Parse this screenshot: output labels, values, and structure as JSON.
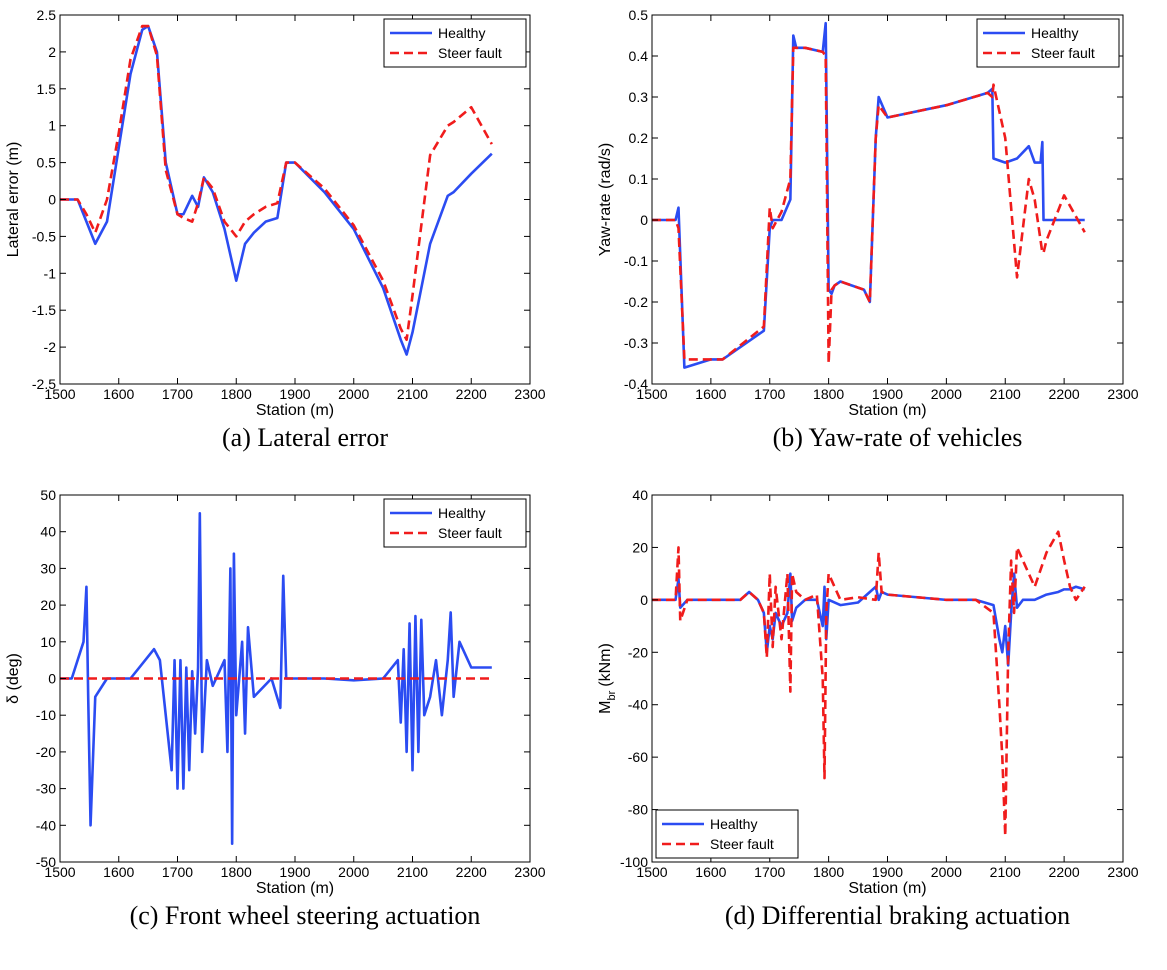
{
  "chart_data": [
    {
      "type": "line",
      "caption": "(a) Lateral error",
      "xlabel": "Station (m)",
      "ylabel": "Lateral error (m)",
      "legend": "northeast",
      "xlim": [
        1500,
        2300
      ],
      "xticks": [
        1500,
        1600,
        1700,
        1800,
        1900,
        2000,
        2100,
        2200,
        2300
      ],
      "ylim": [
        -2.5,
        2.5
      ],
      "yticks": [
        -2.5,
        -2,
        -1.5,
        -1,
        -0.5,
        0,
        0.5,
        1,
        1.5,
        2,
        2.5
      ],
      "x": [
        1500,
        1530,
        1545,
        1560,
        1580,
        1600,
        1620,
        1640,
        1650,
        1665,
        1680,
        1700,
        1710,
        1725,
        1735,
        1745,
        1760,
        1780,
        1800,
        1815,
        1830,
        1850,
        1870,
        1885,
        1900,
        1950,
        2000,
        2050,
        2080,
        2090,
        2100,
        2130,
        2160,
        2170,
        2200,
        2235
      ],
      "series": [
        {
          "name": "Healthy",
          "color": "#2b4cf2",
          "linestyle": "solid",
          "values": [
            0,
            0,
            -0.3,
            -0.6,
            -0.3,
            0.7,
            1.7,
            2.3,
            2.35,
            2.0,
            0.5,
            -0.2,
            -0.2,
            0.05,
            -0.1,
            0.3,
            0.1,
            -0.4,
            -1.1,
            -0.6,
            -0.45,
            -0.3,
            -0.25,
            0.5,
            0.5,
            0.1,
            -0.4,
            -1.2,
            -1.9,
            -2.1,
            -1.8,
            -0.6,
            0.05,
            0.1,
            0.35,
            0.62
          ]
        },
        {
          "name": "Steer fault",
          "color": "#f01c1c",
          "linestyle": "dashed",
          "values": [
            0,
            0,
            -0.2,
            -0.45,
            0,
            0.9,
            1.9,
            2.35,
            2.35,
            1.95,
            0.4,
            -0.2,
            -0.25,
            -0.3,
            -0.05,
            0.3,
            0.15,
            -0.3,
            -0.5,
            -0.3,
            -0.2,
            -0.1,
            -0.05,
            0.5,
            0.5,
            0.15,
            -0.35,
            -1.1,
            -1.75,
            -1.9,
            -1.3,
            0.6,
            1.0,
            1.05,
            1.25,
            0.75
          ]
        }
      ]
    },
    {
      "type": "line",
      "caption": "(b) Yaw-rate of vehicles",
      "xlabel": "Station (m)",
      "ylabel": "Yaw-rate (rad/s)",
      "legend": "northeast",
      "xlim": [
        1500,
        2300
      ],
      "xticks": [
        1500,
        1600,
        1700,
        1800,
        1900,
        2000,
        2100,
        2200,
        2300
      ],
      "ylim": [
        -0.4,
        0.5
      ],
      "yticks": [
        -0.4,
        -0.3,
        -0.2,
        -0.1,
        0,
        0.1,
        0.2,
        0.3,
        0.4,
        0.5
      ],
      "x": [
        1500,
        1540,
        1545,
        1555,
        1600,
        1620,
        1690,
        1700,
        1705,
        1720,
        1735,
        1740,
        1745,
        1760,
        1790,
        1795,
        1800,
        1805,
        1810,
        1820,
        1840,
        1860,
        1870,
        1880,
        1885,
        1900,
        2000,
        2070,
        2078,
        2080,
        2100,
        2120,
        2140,
        2150,
        2160,
        2163,
        2165,
        2170,
        2200,
        2235
      ],
      "series": [
        {
          "name": "Healthy",
          "color": "#2b4cf2",
          "linestyle": "solid",
          "values": [
            0,
            0,
            0.03,
            -0.36,
            -0.34,
            -0.34,
            -0.27,
            -0.02,
            0,
            0,
            0.05,
            0.45,
            0.42,
            0.42,
            0.41,
            0.48,
            -0.17,
            -0.18,
            -0.16,
            -0.15,
            -0.16,
            -0.17,
            -0.2,
            0.2,
            0.3,
            0.25,
            0.28,
            0.31,
            0.32,
            0.15,
            0.14,
            0.15,
            0.18,
            0.14,
            0.14,
            0.19,
            0,
            0,
            0,
            0
          ]
        },
        {
          "name": "Steer fault",
          "color": "#f01c1c",
          "linestyle": "dashed",
          "values": [
            0,
            0,
            -0.02,
            -0.34,
            -0.34,
            -0.34,
            -0.26,
            0.03,
            -0.02,
            0.02,
            0.1,
            0.42,
            0.42,
            0.42,
            0.41,
            0.4,
            -0.35,
            -0.17,
            -0.16,
            -0.15,
            -0.16,
            -0.17,
            -0.2,
            0.2,
            0.28,
            0.25,
            0.28,
            0.31,
            0.3,
            0.33,
            0.2,
            -0.14,
            0.1,
            0.05,
            -0.05,
            -0.08,
            -0.08,
            -0.05,
            0.06,
            -0.03
          ]
        }
      ]
    },
    {
      "type": "line",
      "caption": "(c) Front wheel steering actuation",
      "xlabel": "Station (m)",
      "ylabel": "δ (deg)",
      "legend": "northeast",
      "xlim": [
        1500,
        2300
      ],
      "xticks": [
        1500,
        1600,
        1700,
        1800,
        1900,
        2000,
        2100,
        2200,
        2300
      ],
      "ylim": [
        -50,
        50
      ],
      "yticks": [
        -50,
        -40,
        -30,
        -20,
        -10,
        0,
        10,
        20,
        30,
        40,
        50
      ],
      "x": [
        1500,
        1520,
        1540,
        1545,
        1548,
        1552,
        1560,
        1580,
        1620,
        1660,
        1670,
        1680,
        1690,
        1695,
        1700,
        1705,
        1710,
        1715,
        1720,
        1725,
        1730,
        1735,
        1738,
        1742,
        1750,
        1760,
        1780,
        1785,
        1790,
        1793,
        1796,
        1800,
        1810,
        1815,
        1820,
        1830,
        1860,
        1875,
        1880,
        1885,
        1900,
        1950,
        2000,
        2050,
        2075,
        2080,
        2085,
        2090,
        2095,
        2100,
        2105,
        2110,
        2115,
        2120,
        2130,
        2140,
        2150,
        2160,
        2165,
        2170,
        2180,
        2200,
        2235
      ],
      "series": [
        {
          "name": "Healthy",
          "color": "#2b4cf2",
          "linestyle": "solid",
          "values": [
            0,
            0,
            10,
            25,
            -5,
            -40,
            -5,
            0,
            0,
            8,
            5,
            -10,
            -25,
            5,
            -30,
            5,
            -30,
            3,
            -25,
            2,
            -15,
            3,
            45,
            -20,
            5,
            -2,
            5,
            -20,
            30,
            -45,
            34,
            -10,
            10,
            -15,
            14,
            -5,
            0,
            -8,
            28,
            0,
            0,
            0,
            -0.5,
            0,
            5,
            -12,
            8,
            -20,
            15,
            -25,
            17,
            -20,
            16,
            -10,
            -5,
            5,
            -10,
            5,
            18,
            -5,
            10,
            3,
            3
          ]
        },
        {
          "name": "Steer fault",
          "color": "#f01c1c",
          "linestyle": "dashed",
          "values": [
            0,
            0,
            0,
            0,
            0,
            0,
            0,
            0,
            0,
            0,
            0,
            0,
            0,
            0,
            0,
            0,
            0,
            0,
            0,
            0,
            0,
            0,
            0,
            0,
            0,
            0,
            0,
            0,
            0,
            0,
            0,
            0,
            0,
            0,
            0,
            0,
            0,
            0,
            0,
            0,
            0,
            0,
            0,
            0,
            0,
            0,
            0,
            0,
            0,
            0,
            0,
            0,
            0,
            0,
            0,
            0,
            0,
            0,
            0,
            0,
            0,
            0,
            0
          ]
        }
      ]
    },
    {
      "type": "line",
      "caption": "(d) Differential braking actuation",
      "xlabel": "Station (m)",
      "ylabel": "M",
      "ylabel_sub": "br",
      "ylabel_unit": "(kNm)",
      "legend": "southwest",
      "xlim": [
        1500,
        2300
      ],
      "xticks": [
        1500,
        1600,
        1700,
        1800,
        1900,
        2000,
        2100,
        2200,
        2300
      ],
      "ylim": [
        -100,
        40
      ],
      "yticks": [
        -100,
        -80,
        -60,
        -40,
        -20,
        0,
        20,
        40
      ],
      "x": [
        1500,
        1540,
        1545,
        1548,
        1560,
        1600,
        1650,
        1665,
        1680,
        1690,
        1695,
        1700,
        1705,
        1710,
        1720,
        1730,
        1735,
        1738,
        1745,
        1760,
        1780,
        1790,
        1793,
        1796,
        1800,
        1820,
        1850,
        1880,
        1885,
        1890,
        1900,
        2000,
        2050,
        2080,
        2090,
        2095,
        2100,
        2105,
        2110,
        2115,
        2120,
        2130,
        2150,
        2170,
        2190,
        2200,
        2210,
        2220,
        2235
      ],
      "series": [
        {
          "name": "Healthy",
          "color": "#2b4cf2",
          "linestyle": "solid",
          "values": [
            0,
            0,
            8,
            -3,
            0,
            0,
            0,
            3,
            0,
            -5,
            -20,
            -10,
            -15,
            -5,
            -10,
            -5,
            10,
            -8,
            -3,
            0,
            0,
            -10,
            5,
            -15,
            0,
            -2,
            -1,
            5,
            0,
            3,
            2,
            0,
            0,
            -2,
            -15,
            -20,
            -10,
            -25,
            -5,
            10,
            -3,
            0,
            0,
            2,
            3,
            4,
            4,
            5,
            4
          ]
        },
        {
          "name": "Steer fault",
          "color": "#f01c1c",
          "linestyle": "dashed",
          "values": [
            0,
            0,
            20,
            -8,
            0,
            0,
            0,
            3,
            0,
            -5,
            -22,
            10,
            -18,
            5,
            -15,
            10,
            -35,
            10,
            3,
            0,
            2,
            -30,
            -68,
            -5,
            10,
            0,
            1,
            0,
            18,
            3,
            2,
            0,
            0,
            -5,
            -40,
            -60,
            -90,
            -20,
            15,
            -5,
            20,
            15,
            5,
            18,
            26,
            15,
            5,
            0,
            5
          ]
        }
      ]
    }
  ]
}
